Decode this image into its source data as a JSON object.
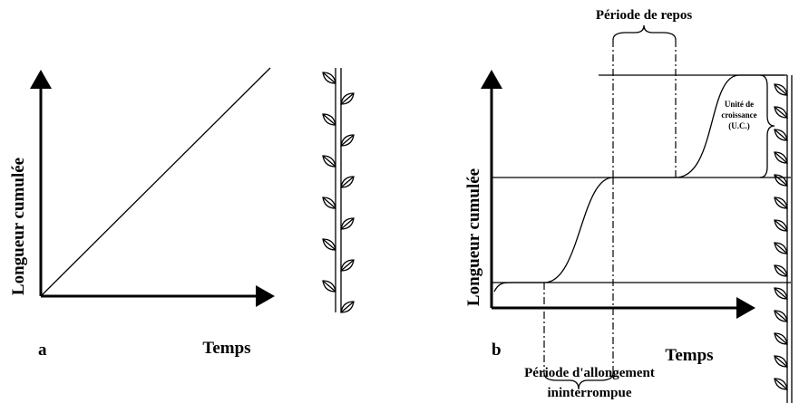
{
  "panels": [
    {
      "label": "a",
      "y_axis": "Longueur cumulée",
      "x_axis": "Temps"
    },
    {
      "label": "b",
      "y_axis": "Longueur cumulée",
      "x_axis": "Temps",
      "rest_period": "Période de repos",
      "growth_unit": [
        "Unité de",
        "croissance",
        "(U.C.)"
      ],
      "elongation_period": [
        "Période d'allongement",
        "ininterrompue"
      ]
    }
  ]
}
